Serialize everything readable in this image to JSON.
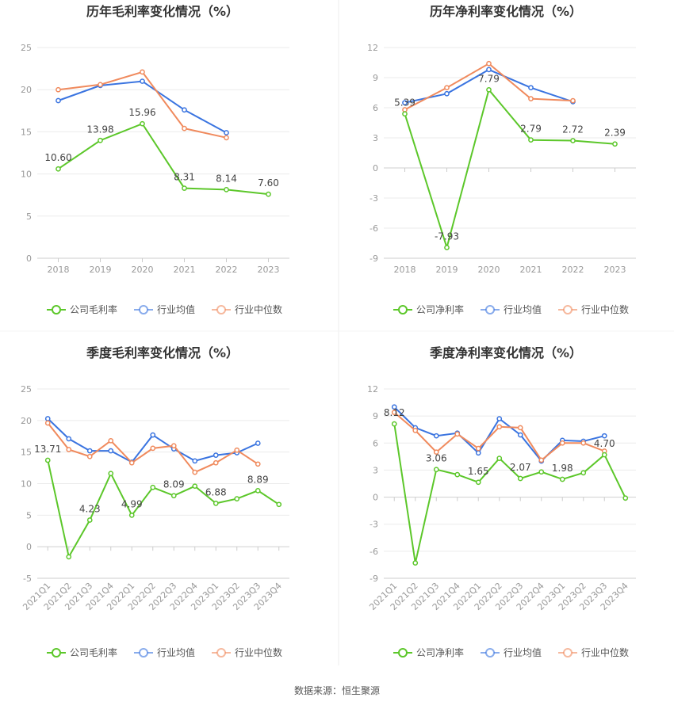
{
  "source": "数据来源：恒生聚源",
  "colors": {
    "company": "#5cc72a",
    "avg": "#3a74e0",
    "median": "#f08a5d"
  },
  "charts": [
    {
      "type": "line",
      "title": "历年毛利率变化情况（%）",
      "categories": [
        "2018",
        "2019",
        "2020",
        "2021",
        "2022",
        "2023"
      ],
      "ylim": [
        0,
        25
      ],
      "yticks": [
        0,
        5,
        10,
        15,
        20,
        25
      ],
      "series": [
        {
          "name": "公司毛利率",
          "key": "company",
          "labels": true,
          "values": [
            10.6,
            13.98,
            15.96,
            8.31,
            8.14,
            7.6
          ]
        },
        {
          "name": "行业均值",
          "key": "avg",
          "values": [
            18.7,
            20.5,
            21.0,
            17.6,
            14.9,
            null
          ]
        },
        {
          "name": "行业中位数",
          "key": "median",
          "values": [
            20.0,
            20.6,
            22.1,
            15.4,
            14.3,
            null
          ]
        }
      ]
    },
    {
      "type": "line",
      "title": "历年净利率变化情况（%）",
      "categories": [
        "2018",
        "2019",
        "2020",
        "2021",
        "2022",
        "2023"
      ],
      "ylim": [
        -9,
        12
      ],
      "yticks": [
        -9,
        -6,
        -3,
        0,
        3,
        6,
        9,
        12
      ],
      "series": [
        {
          "name": "公司净利率",
          "key": "company",
          "labels": true,
          "values": [
            5.39,
            -7.93,
            7.79,
            2.79,
            2.72,
            2.39
          ]
        },
        {
          "name": "行业均值",
          "key": "avg",
          "values": [
            6.5,
            7.4,
            9.8,
            8.0,
            6.6,
            null
          ]
        },
        {
          "name": "行业中位数",
          "key": "median",
          "values": [
            5.8,
            8.0,
            10.4,
            6.9,
            6.7,
            null
          ]
        }
      ]
    },
    {
      "type": "line",
      "title": "季度毛利率变化情况（%）",
      "categories": [
        "2021Q1",
        "2021Q2",
        "2021Q3",
        "2021Q4",
        "2022Q1",
        "2022Q2",
        "2022Q3",
        "2022Q4",
        "2023Q1",
        "2023Q2",
        "2023Q3",
        "2023Q4"
      ],
      "ylim": [
        -5,
        25
      ],
      "yticks": [
        -5,
        0,
        5,
        10,
        15,
        20,
        25
      ],
      "series": [
        {
          "name": "公司毛利率",
          "key": "company",
          "values": [
            13.71,
            -1.6,
            4.23,
            11.6,
            4.99,
            9.4,
            8.09,
            9.6,
            6.88,
            7.6,
            8.89,
            6.7
          ],
          "label_idx": [
            0,
            2,
            4,
            6,
            8,
            10
          ]
        },
        {
          "name": "行业均值",
          "key": "avg",
          "values": [
            20.3,
            17.1,
            15.2,
            15.2,
            13.4,
            17.7,
            15.5,
            13.6,
            14.5,
            14.9,
            16.4,
            null
          ]
        },
        {
          "name": "行业中位数",
          "key": "median",
          "values": [
            19.6,
            15.4,
            14.3,
            16.8,
            13.3,
            15.6,
            16.0,
            11.8,
            13.3,
            15.3,
            13.1,
            null
          ]
        }
      ]
    },
    {
      "type": "line",
      "title": "季度净利率变化情况（%）",
      "categories": [
        "2021Q1",
        "2021Q2",
        "2021Q3",
        "2021Q4",
        "2022Q1",
        "2022Q2",
        "2022Q3",
        "2022Q4",
        "2023Q1",
        "2023Q2",
        "2023Q3",
        "2023Q4"
      ],
      "ylim": [
        -9,
        12
      ],
      "yticks": [
        -9,
        -6,
        -3,
        0,
        3,
        6,
        9,
        12
      ],
      "series": [
        {
          "name": "公司净利率",
          "key": "company",
          "values": [
            8.12,
            -7.3,
            3.06,
            2.5,
            1.65,
            4.3,
            2.07,
            2.8,
            1.98,
            2.7,
            4.7,
            -0.1
          ],
          "label_idx": [
            0,
            2,
            4,
            6,
            8,
            10
          ]
        },
        {
          "name": "行业均值",
          "key": "avg",
          "values": [
            10.0,
            7.7,
            6.8,
            7.1,
            4.9,
            8.7,
            6.9,
            4.0,
            6.3,
            6.2,
            6.8,
            null
          ]
        },
        {
          "name": "行业中位数",
          "key": "median",
          "values": [
            9.4,
            7.4,
            5.0,
            7.0,
            5.4,
            7.8,
            7.7,
            4.1,
            6.0,
            6.0,
            5.1,
            null
          ]
        }
      ]
    }
  ]
}
